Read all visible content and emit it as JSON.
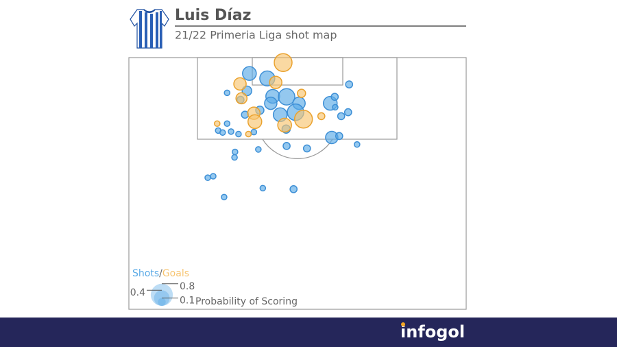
{
  "chart_data": {
    "type": "bubble",
    "title": "Luis Díaz",
    "subtitle": "21/22 Primeria Liga shot map",
    "xlim": [
      0,
      68
    ],
    "ylim": [
      0,
      50.7
    ],
    "series": [
      {
        "name": "Shots",
        "color": "#5aaae6",
        "stroke": "#3d8fd6",
        "x": [
          24.3,
          27.9,
          19.8,
          23.8,
          22.5,
          29.0,
          31.8,
          28.6,
          34.3,
          30.5,
          33.6,
          23.4,
          26.4,
          40.6,
          41.5,
          41.6,
          44.4,
          44.2,
          42.8,
          40.9,
          42.4,
          46.0,
          19.8,
          18.0,
          18.9,
          20.6,
          22.1,
          25.2,
          31.7,
          31.8,
          35.9,
          26.1,
          21.4,
          21.3,
          15.9,
          17.0,
          27.0,
          33.2,
          19.2
        ],
        "y": [
          3.2,
          4.2,
          7.1,
          6.7,
          8.5,
          7.8,
          7.9,
          9.2,
          9.2,
          11.5,
          11.0,
          11.5,
          10.6,
          9.2,
          7.9,
          10.0,
          5.4,
          11.0,
          11.8,
          16.1,
          15.8,
          17.5,
          13.3,
          14.7,
          15.1,
          14.9,
          15.4,
          15.0,
          14.4,
          17.8,
          18.3,
          18.5,
          19.0,
          20.1,
          24.2,
          23.9,
          26.3,
          26.5,
          28.1
        ],
        "sizes": [
          0.31,
          0.37,
          0.05,
          0.15,
          0.08,
          0.31,
          0.44,
          0.25,
          0.25,
          0.31,
          0.44,
          0.08,
          0.11,
          0.31,
          0.08,
          0.05,
          0.08,
          0.08,
          0.08,
          0.25,
          0.08,
          0.05,
          0.05,
          0.05,
          0.05,
          0.05,
          0.05,
          0.05,
          0.11,
          0.08,
          0.08,
          0.05,
          0.05,
          0.05,
          0.05,
          0.05,
          0.05,
          0.08,
          0.05
        ]
      },
      {
        "name": "Goals",
        "color": "#f7c470",
        "stroke": "#eaa22e",
        "x": [
          31.1,
          22.4,
          29.6,
          22.7,
          34.8,
          17.8,
          25.2,
          25.4,
          31.4,
          35.2,
          38.8,
          24.1
        ],
        "y": [
          1.0,
          5.3,
          5.0,
          8.2,
          7.2,
          13.3,
          11.2,
          12.9,
          13.6,
          12.4,
          11.8,
          15.4
        ],
        "sizes": [
          0.52,
          0.25,
          0.25,
          0.2,
          0.11,
          0.05,
          0.25,
          0.31,
          0.31,
          0.52,
          0.08,
          0.05
        ]
      }
    ],
    "legend_separator": "/",
    "size_legend": {
      "title": "Probability of Scoring",
      "sizes": [
        0.4,
        0.8,
        0.1
      ]
    },
    "brand": "infogol"
  }
}
